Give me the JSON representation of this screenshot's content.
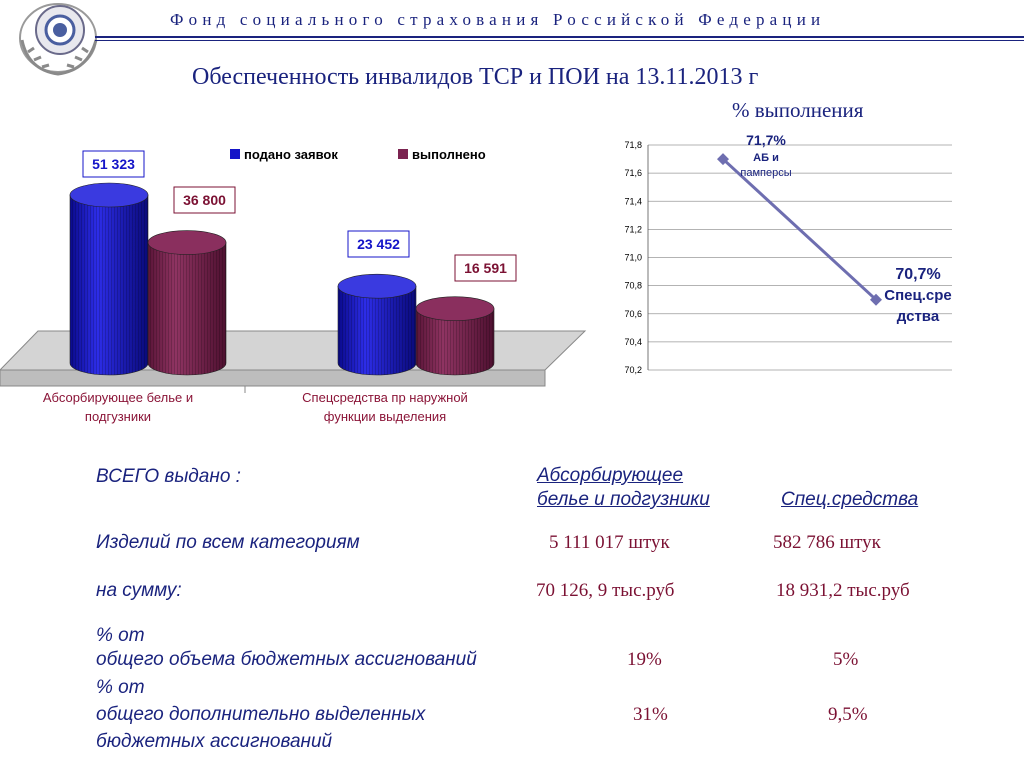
{
  "header": {
    "org_title": "Фонд социального страхования Российской Федерации"
  },
  "titles": {
    "main": "Обеспеченность инвалидов ТСР и ПОИ на 13.11.2013 г",
    "percent": "% выполнения"
  },
  "colors": {
    "navy": "#1a237e",
    "bar_blue": "#1515c8",
    "bar_maroon": "#7b2350",
    "value_red": "#7b1133",
    "line": "#6e6eb0"
  },
  "chart_data": [
    {
      "type": "bar",
      "categories": [
        "Абсорбирующее белье и подгузники",
        "Спецсредства пр наружной функции выделения"
      ],
      "series": [
        {
          "name": "подано заявок",
          "values": [
            51323,
            23452
          ],
          "labels": [
            "51 323",
            "23 452"
          ],
          "color": "#1515c8"
        },
        {
          "name": "выполнено",
          "values": [
            36800,
            16591
          ],
          "labels": [
            "36 800",
            "16 591"
          ],
          "color": "#7b2350"
        }
      ],
      "legend_position": "top",
      "style": "3d-cylinder"
    },
    {
      "type": "line",
      "categories": [
        "АБ и памперсы",
        "Спец.средства"
      ],
      "values": [
        71.7,
        70.7
      ],
      "point_labels": [
        [
          "71,7%",
          "АБ и",
          "памперсы"
        ],
        [
          "70,7%",
          "Спец.сре",
          "дства"
        ]
      ],
      "ylim": [
        70.2,
        71.8
      ],
      "yticks": [
        "70,2",
        "70,4",
        "70,6",
        "70,8",
        "71,0",
        "71,2",
        "71,4",
        "71,6",
        "71,8"
      ],
      "grid": true
    }
  ],
  "summary": {
    "total_label": "ВСЕГО выдано :",
    "col1_line1": "Абсорбирующее",
    "col1_line2": "белье и подгузники",
    "col2": "Спец.средства",
    "rows": [
      {
        "label": "Изделий по всем категориям",
        "v1": "5 111 017 штук",
        "v2": "582 786 штук"
      },
      {
        "label": "на сумму:",
        "v1": "70 126, 9 тыс.руб",
        "v2": "18 931,2 тыс.руб"
      },
      {
        "label_a": "% от",
        "label_b": "общего объема бюджетных ассигнований",
        "v1": "19%",
        "v2": "5%"
      },
      {
        "label_a": "% от",
        "label_b": "общего дополнительно выделенных",
        "label_c": "бюджетных ассигнований",
        "v1": "31%",
        "v2": "9,5%"
      }
    ]
  }
}
